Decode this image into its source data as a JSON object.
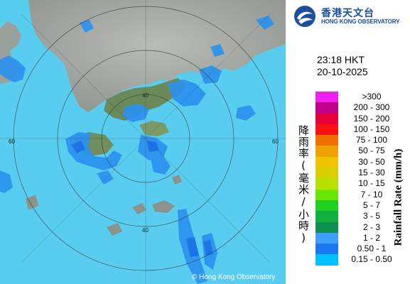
{
  "header": {
    "logo_icon": "hko-logo-icon",
    "logo_chinese": "香港天文台",
    "logo_english": "HONG KONG OBSERVATORY"
  },
  "timestamp": {
    "time": "23:18 HKT",
    "date": "20-10-2025"
  },
  "legend": {
    "chinese_title": "降雨率(毫米/小時)",
    "english_title": "Rainfall Rate (mm/h)",
    "items": [
      {
        "label": ">300",
        "color": "#f020f0"
      },
      {
        "label": "200 - 300",
        "color": "#c0008a"
      },
      {
        "label": "150 - 200",
        "color": "#e8003a"
      },
      {
        "label": "100 - 150",
        "color": "#ff1010"
      },
      {
        "label": "75 - 100",
        "color": "#f07000"
      },
      {
        "label": "50 - 75",
        "color": "#f0a000"
      },
      {
        "label": "30 - 50",
        "color": "#f0c400"
      },
      {
        "label": "15 - 30",
        "color": "#d8d000"
      },
      {
        "label": "10 - 15",
        "color": "#b8e000"
      },
      {
        "label": "7 - 10",
        "color": "#68e800"
      },
      {
        "label": "5 - 7",
        "color": "#20d020"
      },
      {
        "label": "3 - 5",
        "color": "#10b040"
      },
      {
        "label": "2 - 3",
        "color": "#109050"
      },
      {
        "label": "1 - 2",
        "color": "#3fa0ff"
      },
      {
        "label": "0.50 - 1",
        "color": "#1a78f0"
      },
      {
        "label": "0.15 - 0.50",
        "color": "#00c0ff"
      }
    ]
  },
  "map": {
    "ring_labels": [
      "40",
      "60",
      "60",
      "40"
    ],
    "sea_color": "#58cdf0",
    "copyright": "© Hong Kong Observatory"
  }
}
